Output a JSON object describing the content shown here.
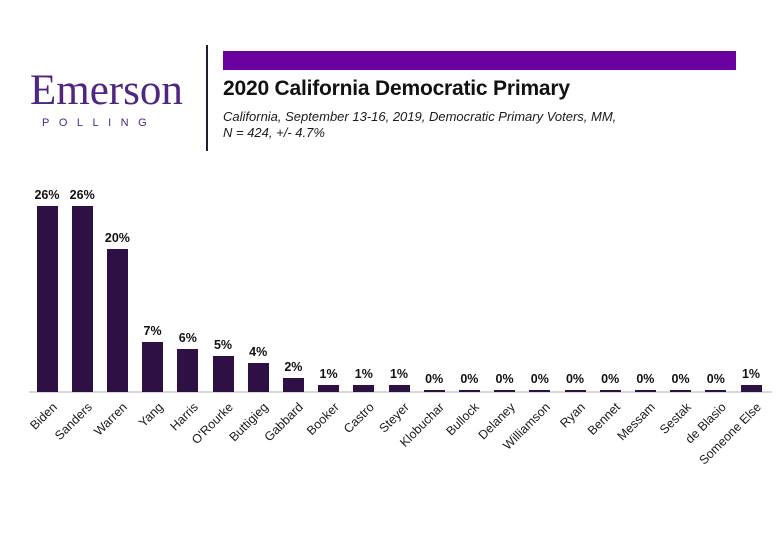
{
  "brand": {
    "name": "Emerson",
    "sub": "POLLING",
    "color": "#4F2683"
  },
  "header": {
    "title": "2020 California Democratic Primary",
    "subtitle_line1": "California, September 13-16, 2019, Democratic Primary Voters, MM,",
    "subtitle_line2": "N = 424, +/- 4.7%",
    "accent_color": "#6A009E"
  },
  "chart_data": {
    "type": "bar",
    "title": "2020 California Democratic Primary",
    "subtitle": "California, September 13-16, 2019, Democratic Primary Voters, MM, N = 424, +/- 4.7%",
    "categories": [
      "Biden",
      "Sanders",
      "Warren",
      "Yang",
      "Harris",
      "O'Rourke",
      "Buttigieg",
      "Gabbard",
      "Booker",
      "Castro",
      "Steyer",
      "Klobuchar",
      "Bullock",
      "Delaney",
      "Williamson",
      "Ryan",
      "Bennet",
      "Messam",
      "Sestak",
      "de Blasio",
      "Someone Else"
    ],
    "values": [
      26,
      26,
      20,
      7,
      6,
      5,
      4,
      2,
      1,
      1,
      1,
      0,
      0,
      0,
      0,
      0,
      0,
      0,
      0,
      0,
      1
    ],
    "value_labels": [
      "26%",
      "26%",
      "20%",
      "7%",
      "6%",
      "5%",
      "4%",
      "2%",
      "1%",
      "1%",
      "1%",
      "0%",
      "0%",
      "0%",
      "0%",
      "0%",
      "0%",
      "0%",
      "0%",
      "0%",
      "1%"
    ],
    "xlabel": "",
    "ylabel": "",
    "ylim": [
      0,
      28
    ],
    "grid": false,
    "legend": false,
    "data_labels": "percent above each bar, bold",
    "x_tick_rotation_deg": 45,
    "bar_color": "#2E1044",
    "axis_line_color": "#D9D9D9",
    "label_color": "#111111"
  }
}
